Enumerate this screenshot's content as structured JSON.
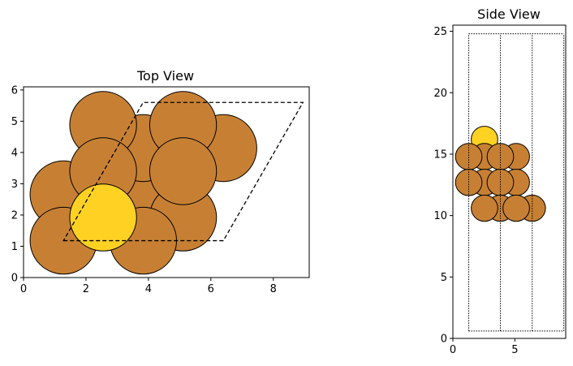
{
  "top_view": {
    "title": "Top View",
    "xticks": [
      {
        "v": 0,
        "label": "0"
      },
      {
        "v": 2,
        "label": "2"
      },
      {
        "v": 4,
        "label": "4"
      },
      {
        "v": 6,
        "label": "6"
      },
      {
        "v": 8,
        "label": "8"
      }
    ],
    "yticks": [
      {
        "v": 0,
        "label": "0"
      },
      {
        "v": 1,
        "label": "1"
      },
      {
        "v": 2,
        "label": "2"
      },
      {
        "v": 3,
        "label": "3"
      },
      {
        "v": 4,
        "label": "4"
      },
      {
        "v": 5,
        "label": "5"
      },
      {
        "v": 6,
        "label": "6"
      }
    ],
    "xlim": [
      0,
      9.15
    ],
    "ylim": [
      0,
      6.1
    ],
    "cell": [
      [
        1.28,
        1.18
      ],
      [
        6.4,
        1.18
      ],
      [
        8.95,
        5.6
      ],
      [
        3.83,
        5.6
      ]
    ],
    "atoms": [
      {
        "x": 1.28,
        "y": 2.66,
        "r": 1.07,
        "element": "Cu"
      },
      {
        "x": 3.83,
        "y": 2.66,
        "r": 1.07,
        "element": "Cu"
      },
      {
        "x": 3.83,
        "y": 4.14,
        "r": 1.07,
        "element": "Cu"
      },
      {
        "x": 6.4,
        "y": 4.14,
        "r": 1.07,
        "element": "Cu"
      },
      {
        "x": 5.11,
        "y": 1.92,
        "r": 1.07,
        "element": "Cu"
      },
      {
        "x": 2.55,
        "y": 4.88,
        "r": 1.07,
        "element": "Cu"
      },
      {
        "x": 5.11,
        "y": 4.88,
        "r": 1.07,
        "element": "Cu"
      },
      {
        "x": 2.55,
        "y": 3.4,
        "r": 1.07,
        "element": "Cu"
      },
      {
        "x": 5.11,
        "y": 3.4,
        "r": 1.07,
        "element": "Cu"
      },
      {
        "x": 1.28,
        "y": 1.18,
        "r": 1.07,
        "element": "Cu"
      },
      {
        "x": 3.83,
        "y": 1.18,
        "r": 1.07,
        "element": "Cu"
      },
      {
        "x": 2.55,
        "y": 1.92,
        "r": 1.07,
        "element": "Au"
      }
    ]
  },
  "side_view": {
    "title": "Side View",
    "xticks": [
      {
        "v": 0,
        "label": "0"
      },
      {
        "v": 5,
        "label": "5"
      }
    ],
    "yticks": [
      {
        "v": 0,
        "label": "0"
      },
      {
        "v": 5,
        "label": "5"
      },
      {
        "v": 10,
        "label": "10"
      },
      {
        "v": 15,
        "label": "15"
      },
      {
        "v": 20,
        "label": "20"
      },
      {
        "v": 25,
        "label": "25"
      }
    ],
    "xlim": [
      0,
      9.1
    ],
    "ylim": [
      0,
      25.5
    ],
    "cell_x": [
      1.28,
      3.83,
      6.4,
      8.95
    ],
    "cell_y": [
      0.6,
      24.8
    ],
    "atoms": [
      {
        "x": 2.55,
        "y": 16.2,
        "r": 1.07,
        "element": "Au"
      },
      {
        "x": 2.55,
        "y": 14.8,
        "r": 1.07,
        "element": "Cu"
      },
      {
        "x": 5.11,
        "y": 14.8,
        "r": 1.07,
        "element": "Cu"
      },
      {
        "x": 1.28,
        "y": 14.8,
        "r": 1.07,
        "element": "Cu"
      },
      {
        "x": 3.83,
        "y": 14.8,
        "r": 1.07,
        "element": "Cu"
      },
      {
        "x": 2.55,
        "y": 12.7,
        "r": 1.07,
        "element": "Cu"
      },
      {
        "x": 5.11,
        "y": 12.7,
        "r": 1.07,
        "element": "Cu"
      },
      {
        "x": 1.28,
        "y": 12.7,
        "r": 1.07,
        "element": "Cu"
      },
      {
        "x": 3.83,
        "y": 12.7,
        "r": 1.07,
        "element": "Cu"
      },
      {
        "x": 3.83,
        "y": 10.6,
        "r": 1.07,
        "element": "Cu"
      },
      {
        "x": 6.4,
        "y": 10.6,
        "r": 1.07,
        "element": "Cu"
      },
      {
        "x": 2.55,
        "y": 10.6,
        "r": 1.07,
        "element": "Cu"
      },
      {
        "x": 5.11,
        "y": 10.6,
        "r": 1.07,
        "element": "Cu"
      }
    ]
  },
  "colors": {
    "Cu": "#c78033",
    "Au": "#ffd123",
    "edge": "#000000"
  }
}
